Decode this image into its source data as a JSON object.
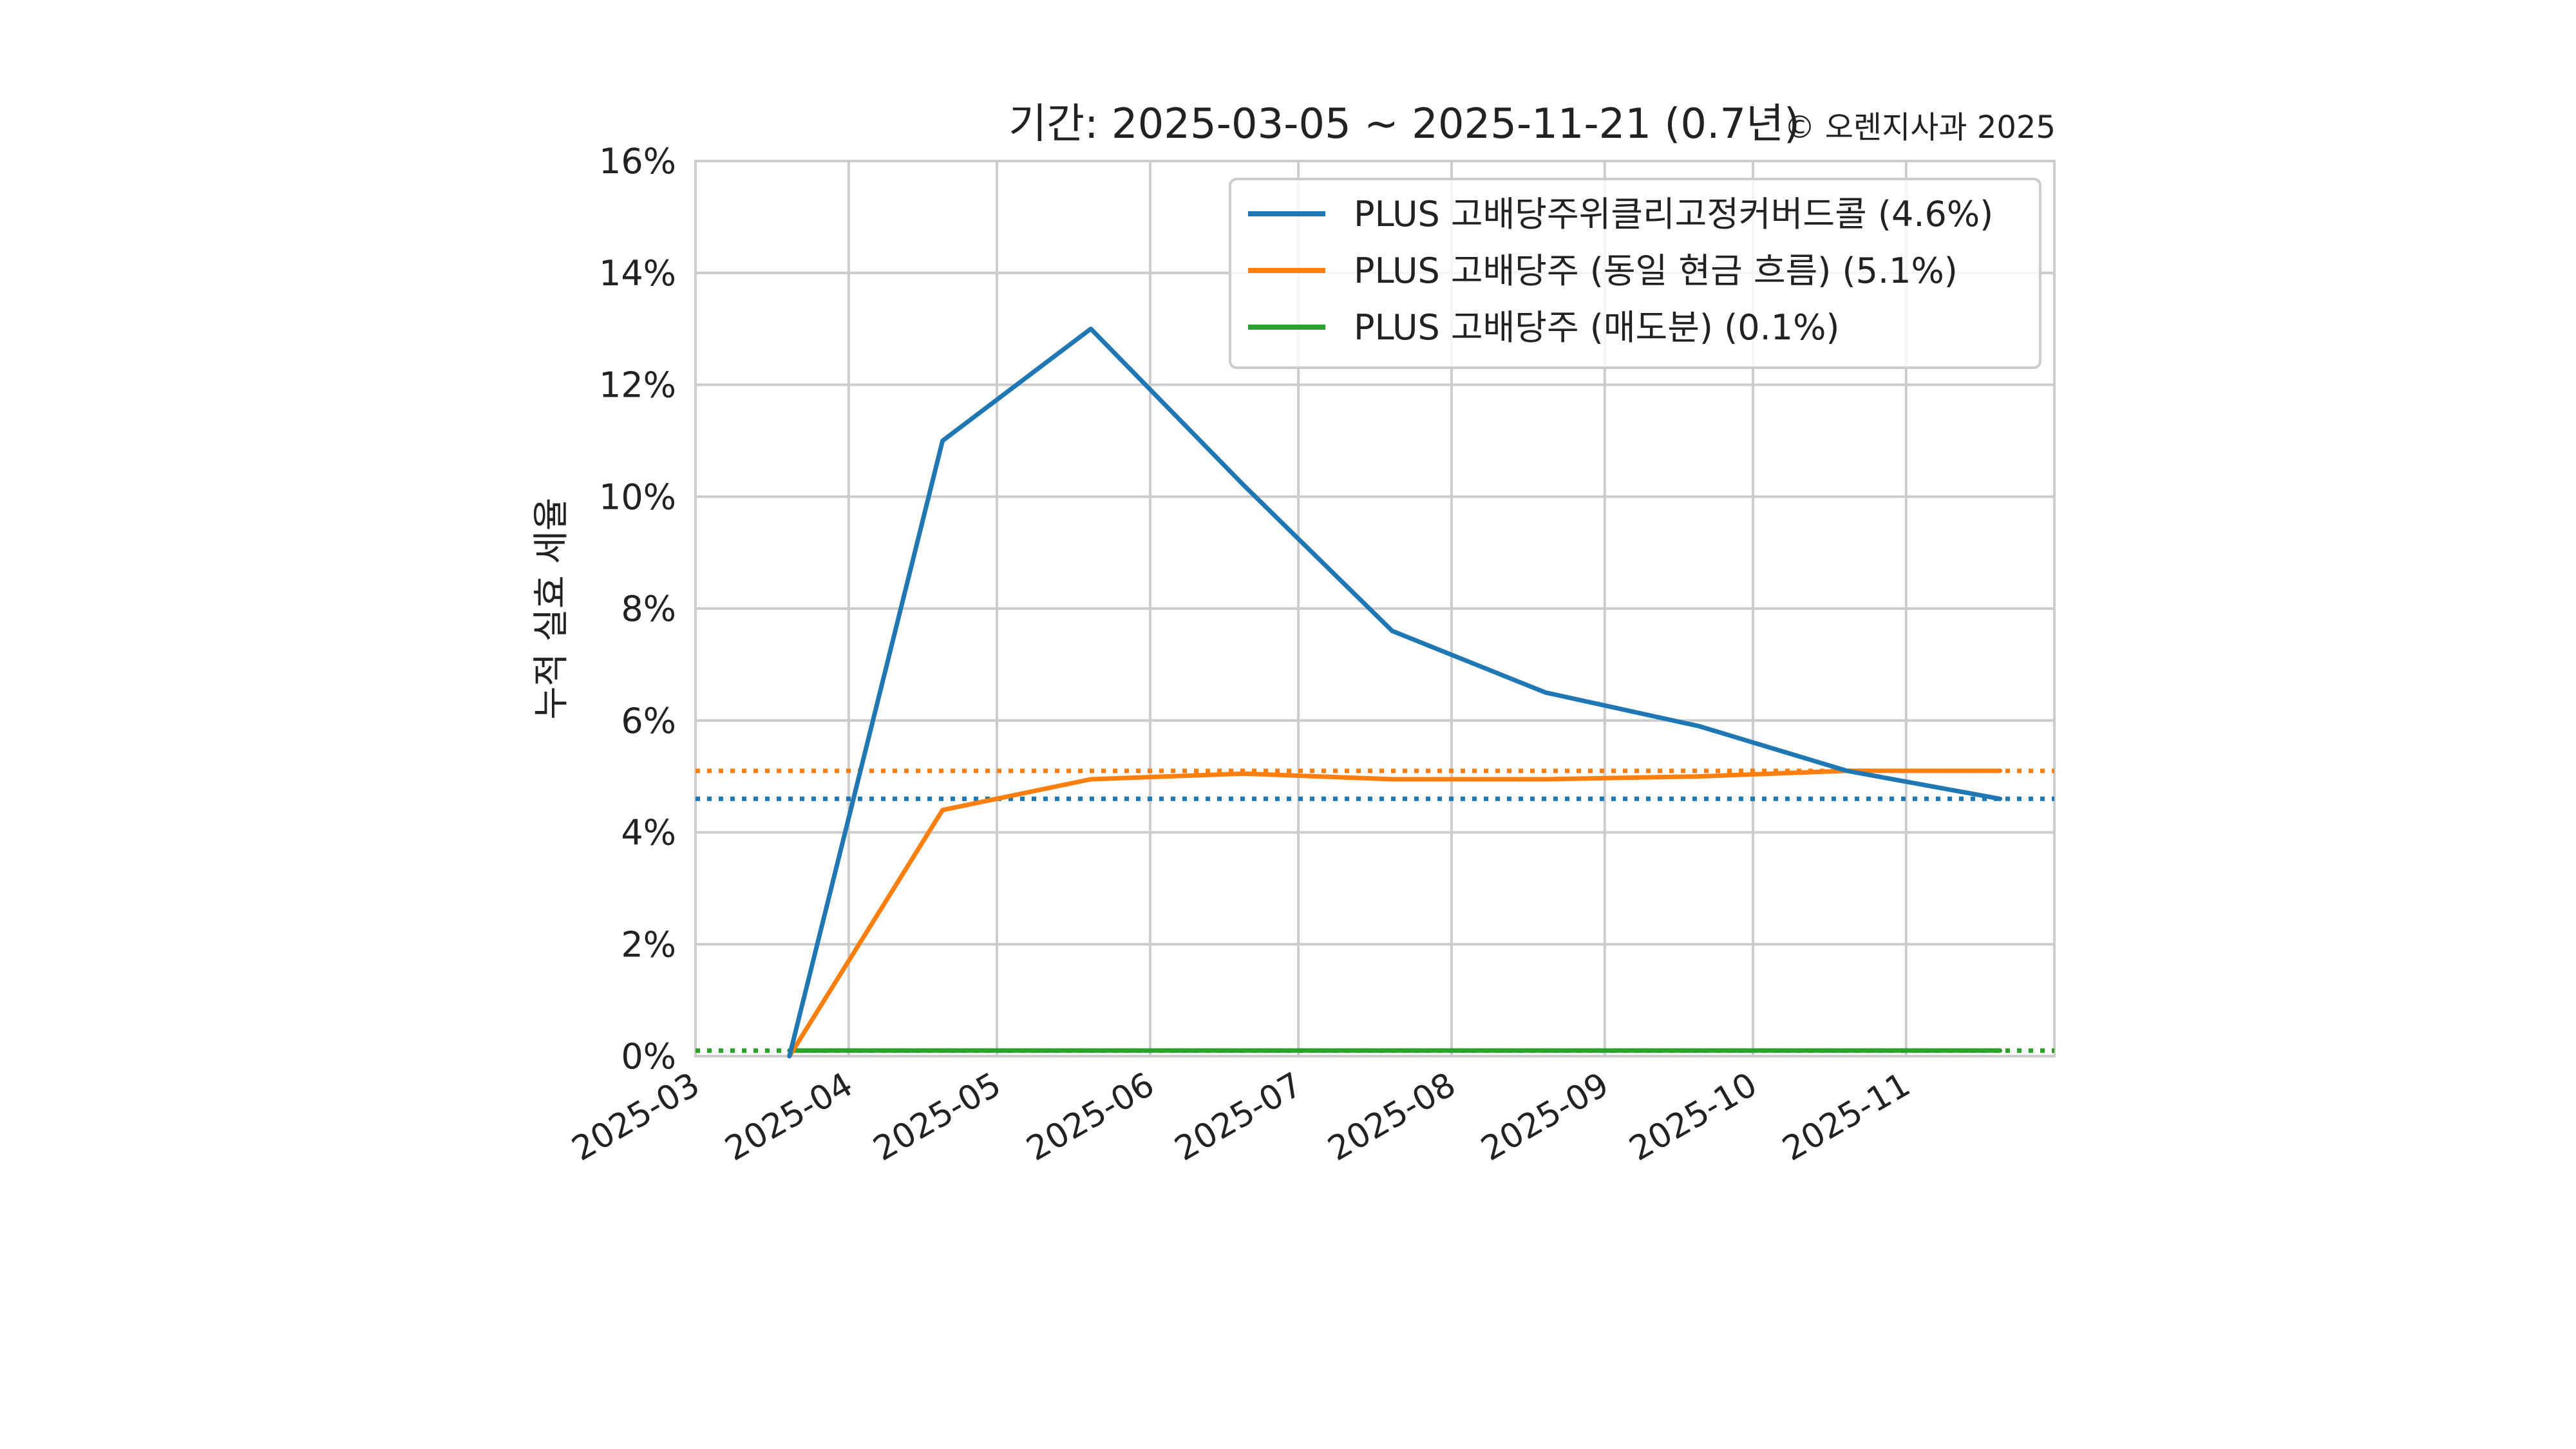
{
  "chart_data": {
    "type": "line",
    "title": "기간: 2025-03-05 ~ 2025-11-21 (0.7년)",
    "subtitle": "© 오렌지사과 2025",
    "xlabel": "",
    "ylabel": "누적 실효 세율",
    "x_dates": [
      "2025-03-20",
      "2025-04-20",
      "2025-05-20",
      "2025-06-20",
      "2025-07-20",
      "2025-08-20",
      "2025-09-20",
      "2025-10-20",
      "2025-11-20"
    ],
    "x_range": [
      "2025-03-01",
      "2025-12-01"
    ],
    "x_ticks": [
      "2025-03-01",
      "2025-04-01",
      "2025-05-01",
      "2025-06-01",
      "2025-07-01",
      "2025-08-01",
      "2025-09-01",
      "2025-10-01",
      "2025-11-01"
    ],
    "x_tick_labels": [
      "2025-03",
      "2025-04",
      "2025-05",
      "2025-06",
      "2025-07",
      "2025-08",
      "2025-09",
      "2025-10",
      "2025-11"
    ],
    "ylim": [
      0,
      16
    ],
    "y_ticks": [
      0,
      2,
      4,
      6,
      8,
      10,
      12,
      14,
      16
    ],
    "y_tick_labels": [
      "0%",
      "2%",
      "4%",
      "6%",
      "8%",
      "10%",
      "12%",
      "14%",
      "16%"
    ],
    "grid": true,
    "legend_position": "top-right",
    "series": [
      {
        "name": "PLUS 고배당주위클리고정커버드콜 (4.6%)",
        "color": "#1f77b4",
        "values": [
          0.0,
          11.0,
          13.0,
          10.2,
          7.6,
          6.5,
          5.9,
          5.1,
          4.6
        ],
        "average": 4.6
      },
      {
        "name": "PLUS 고배당주 (동일 현금 흐름) (5.1%)",
        "color": "#ff7f0e",
        "values": [
          0.0,
          4.4,
          4.95,
          5.05,
          4.95,
          4.95,
          5.0,
          5.1,
          5.1
        ],
        "average": 5.1
      },
      {
        "name": "PLUS 고배당주 (매도분) (0.1%)",
        "color": "#2ca02c",
        "values": [
          0.1,
          0.1,
          0.1,
          0.1,
          0.1,
          0.1,
          0.1,
          0.1,
          0.1
        ],
        "average": 0.1
      }
    ]
  }
}
